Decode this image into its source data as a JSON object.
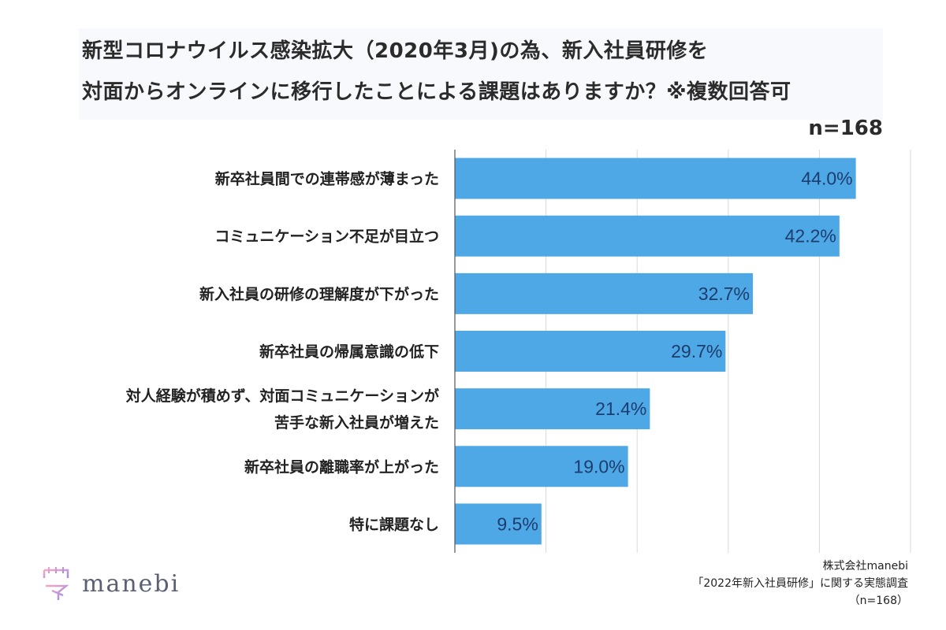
{
  "header": {
    "title_line1": "新型コロナウイルス感染拡大（2020年3月)の為、新入社員研修を",
    "title_line2": "対面からオンラインに移行したことによる課題はありますか？※複数回答可",
    "sample_size": "n=168"
  },
  "chart_data": {
    "type": "bar",
    "orientation": "horizontal",
    "title": "新型コロナウイルス感染拡大（2020年3月)の為、新入社員研修を対面からオンラインに移行したことによる課題はありますか？※複数回答可",
    "categories": [
      [
        "新卒社員間での連帯感が薄まった"
      ],
      [
        "コミュニケーション不足が目立つ"
      ],
      [
        "新入社員の研修の理解度が下がった"
      ],
      [
        "新卒社員の帰属意識の低下"
      ],
      [
        "対人経験が積めず、対面コミュニケーションが",
        "苦手な新入社員が増えた"
      ],
      [
        "新卒社員の離職率が上がった"
      ],
      [
        "特に課題なし"
      ]
    ],
    "values": [
      44.0,
      42.2,
      32.7,
      29.7,
      21.4,
      19.0,
      9.5
    ],
    "value_labels": [
      "44.0%",
      "42.2%",
      "32.7%",
      "29.7%",
      "21.4%",
      "19.0%",
      "9.5%"
    ],
    "xlim": [
      0,
      50
    ],
    "grid_step": 10,
    "bar_color": "#4ea8e6",
    "label_color": "#1c3d6e",
    "grid_color": "#d9d9d9"
  },
  "logo": {
    "text": "manebi"
  },
  "source": {
    "line1": "株式会社manebi",
    "line2": "「2022年新入社員研修」に関する実態調査",
    "line3": "（n=168）"
  }
}
